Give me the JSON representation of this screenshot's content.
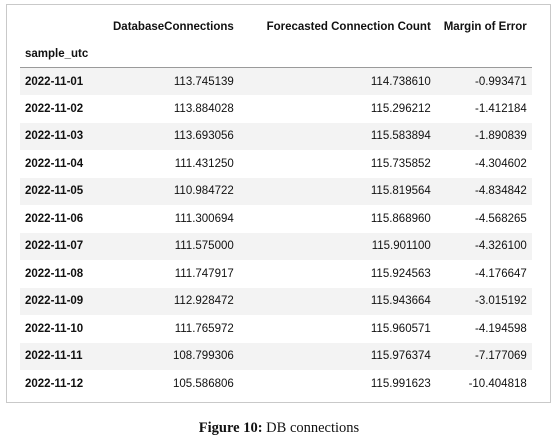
{
  "table": {
    "columns": [
      "DatabaseConnections",
      "Forecasted Connection Count",
      "Margin of Error"
    ],
    "index_name": "sample_utc",
    "rows": [
      {
        "index": "2022-11-01",
        "values": [
          "113.745139",
          "114.738610",
          "-0.993471"
        ]
      },
      {
        "index": "2022-11-02",
        "values": [
          "113.884028",
          "115.296212",
          "-1.412184"
        ]
      },
      {
        "index": "2022-11-03",
        "values": [
          "113.693056",
          "115.583894",
          "-1.890839"
        ]
      },
      {
        "index": "2022-11-04",
        "values": [
          "111.431250",
          "115.735852",
          "-4.304602"
        ]
      },
      {
        "index": "2022-11-05",
        "values": [
          "110.984722",
          "115.819564",
          "-4.834842"
        ]
      },
      {
        "index": "2022-11-06",
        "values": [
          "111.300694",
          "115.868960",
          "-4.568265"
        ]
      },
      {
        "index": "2022-11-07",
        "values": [
          "111.575000",
          "115.901100",
          "-4.326100"
        ]
      },
      {
        "index": "2022-11-08",
        "values": [
          "111.747917",
          "115.924563",
          "-4.176647"
        ]
      },
      {
        "index": "2022-11-09",
        "values": [
          "112.928472",
          "115.943664",
          "-3.015192"
        ]
      },
      {
        "index": "2022-11-10",
        "values": [
          "111.765972",
          "115.960571",
          "-4.194598"
        ]
      },
      {
        "index": "2022-11-11",
        "values": [
          "108.799306",
          "115.976374",
          "-7.177069"
        ]
      },
      {
        "index": "2022-11-12",
        "values": [
          "105.586806",
          "115.991623",
          "-10.404818"
        ]
      }
    ]
  },
  "caption": {
    "label": "Figure 10:",
    "text": " DB connections"
  }
}
